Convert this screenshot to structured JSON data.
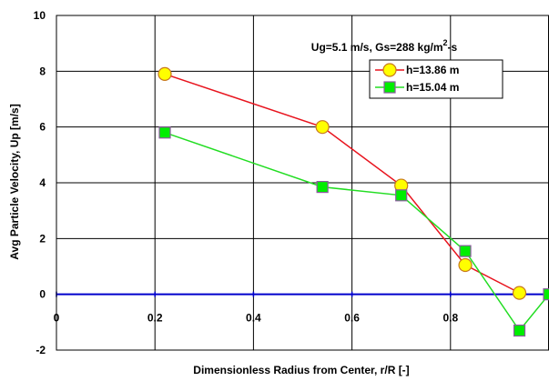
{
  "chart_data": {
    "type": "line",
    "title": "",
    "xlabel": "Dimensionless Radius from Center, r/R [-]",
    "ylabel": "Avg Particle Velocity, Up [m/s]",
    "xlim": [
      0,
      1.0
    ],
    "ylim": [
      -2,
      10
    ],
    "x_ticks": [
      0,
      0.2,
      0.4,
      0.6,
      0.8
    ],
    "x_tick_labels": [
      "0",
      "0.2",
      "0.4",
      "0.6",
      "0.8"
    ],
    "y_ticks": [
      -2,
      0,
      2,
      4,
      6,
      8,
      10
    ],
    "y_tick_labels": [
      "-2",
      "0",
      "2",
      "4",
      "6",
      "8",
      "10"
    ],
    "grid": true,
    "legend_position": "top-right",
    "annotation": {
      "text_main": "Ug=5.1 m/s, Gs=288 kg/m",
      "text_sup": "2",
      "text_tail": "-s"
    },
    "zero_line_color": "#0000cc",
    "series": [
      {
        "name": "h=13.86 m",
        "line_color": "#e8141e",
        "marker": "circle",
        "marker_fill": "#ffff00",
        "marker_stroke": "#c8781e",
        "x": [
          0.22,
          0.54,
          0.7,
          0.83,
          0.94
        ],
        "y": [
          7.9,
          6.0,
          3.9,
          1.05,
          0.05
        ]
      },
      {
        "name": "h=15.04 m",
        "line_color": "#22dd22",
        "marker": "square",
        "marker_fill": "#00ee00",
        "marker_stroke": "#8c5aa0",
        "x": [
          0.22,
          0.54,
          0.7,
          0.83,
          0.94,
          1.0
        ],
        "y": [
          5.8,
          3.85,
          3.55,
          1.55,
          -1.3,
          0.0
        ]
      }
    ]
  }
}
